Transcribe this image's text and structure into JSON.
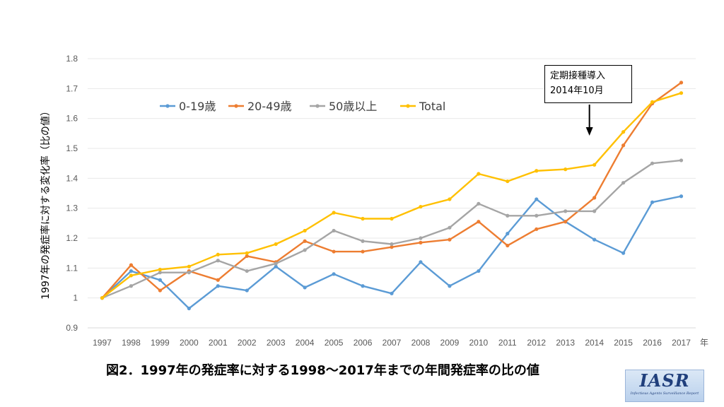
{
  "chart_data": {
    "type": "line",
    "title": "",
    "xlabel": "",
    "x_unit": "年",
    "ylabel": "1997年の発症率に対する変化率（比の値）",
    "ylim": [
      0.9,
      1.8
    ],
    "yticks": [
      "0.9",
      "1",
      "1.1",
      "1.2",
      "1.3",
      "1.4",
      "1.5",
      "1.6",
      "1.7",
      "1.8"
    ],
    "yticks_values": [
      0.9,
      1.0,
      1.1,
      1.2,
      1.3,
      1.4,
      1.5,
      1.6,
      1.7,
      1.8
    ],
    "grid": "horizontal",
    "legend_position": "top-left",
    "categories": [
      "1997",
      "1998",
      "1999",
      "2000",
      "2001",
      "2002",
      "2003",
      "2004",
      "2005",
      "2006",
      "2007",
      "2008",
      "2009",
      "2010",
      "2011",
      "2012",
      "2013",
      "2014",
      "2015",
      "2016",
      "2017"
    ],
    "series": [
      {
        "name": "0-19歳",
        "color": "#5b9bd5",
        "values": [
          1.0,
          1.09,
          1.06,
          0.965,
          1.04,
          1.025,
          1.105,
          1.035,
          1.08,
          1.04,
          1.015,
          1.12,
          1.04,
          1.09,
          1.215,
          1.33,
          1.255,
          1.195,
          1.15,
          1.32,
          1.34
        ]
      },
      {
        "name": "20-49歳",
        "color": "#ed7d31",
        "values": [
          1.0,
          1.11,
          1.025,
          1.09,
          1.06,
          1.14,
          1.12,
          1.19,
          1.155,
          1.155,
          1.17,
          1.185,
          1.195,
          1.255,
          1.175,
          1.23,
          1.255,
          1.335,
          1.51,
          1.65,
          1.72
        ]
      },
      {
        "name": "50歳以上",
        "color": "#a5a5a5",
        "values": [
          1.0,
          1.04,
          1.085,
          1.085,
          1.125,
          1.09,
          1.115,
          1.16,
          1.225,
          1.19,
          1.18,
          1.2,
          1.235,
          1.315,
          1.275,
          1.275,
          1.29,
          1.29,
          1.385,
          1.45,
          1.46
        ]
      },
      {
        "name": "Total",
        "color": "#ffc000",
        "values": [
          1.0,
          1.075,
          1.095,
          1.105,
          1.145,
          1.15,
          1.18,
          1.225,
          1.285,
          1.265,
          1.265,
          1.305,
          1.33,
          1.415,
          1.39,
          1.425,
          1.43,
          1.445,
          1.555,
          1.655,
          1.685
        ]
      }
    ],
    "annotations": [
      {
        "lines": [
          "定期接種導入",
          "2014年10月"
        ],
        "x": "2014"
      }
    ]
  },
  "caption": "図2．1997年の発症率に対する1998〜2017年までの年間発症率の比の値",
  "logo": {
    "main": "IASR",
    "sub": "Infectious Agents Surveillance Report"
  }
}
